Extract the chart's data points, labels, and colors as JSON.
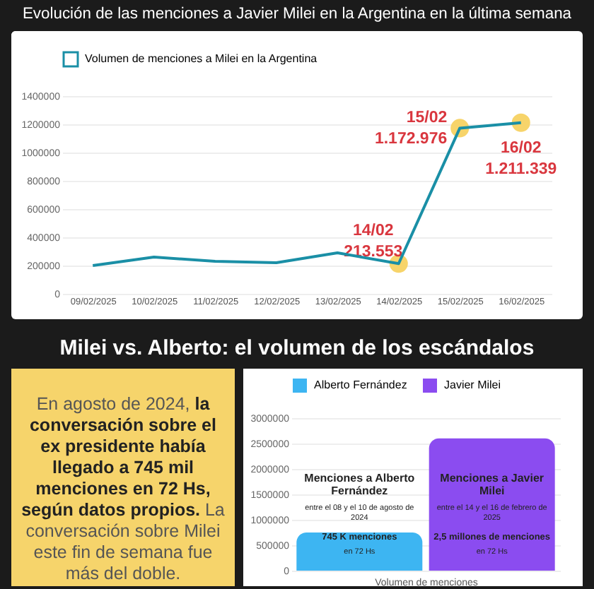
{
  "chart_data": [
    {
      "type": "line",
      "title": "Evolución de las menciones a Javier Milei en la Argentina en la última semana",
      "categories": [
        "09/02/2025",
        "10/02/2025",
        "11/02/2025",
        "12/02/2025",
        "13/02/2025",
        "14/02/2025",
        "15/02/2025",
        "16/02/2025"
      ],
      "series": [
        {
          "name": "Volumen de menciones a Milei en la Argentina",
          "color": "#1a8fa6",
          "values": [
            200000,
            260000,
            230000,
            220000,
            290000,
            213553,
            1172976,
            1211339
          ]
        },
        {
          "type": "scatter",
          "color": "#f7d46a",
          "x": [
            "14/02/2025",
            "15/02/2025",
            "16/02/2025"
          ],
          "values": [
            213553,
            1172976,
            1211339
          ],
          "value_labels": [
            "213.553",
            "1.172.976",
            "1.211.339"
          ]
        }
      ],
      "annotations": [
        "14/02",
        "15/02",
        "16/02"
      ],
      "ylim": [
        0,
        1400000
      ],
      "yticks": [
        0,
        200000,
        400000,
        600000,
        800000,
        1000000,
        1200000,
        1400000
      ],
      "grid": "y",
      "legend": "top"
    },
    {
      "type": "other",
      "title": "Milei vs. Alberto: el volumen de los escándalos",
      "annotations": [
        "En agosto de 2024,",
        "la conversación sobre el ex presidente había llegado a 745 mil menciones en 72 Hs, según datos propios.",
        "La conversación sobre Milei este fin de semana fue más del doble."
      ]
    },
    {
      "type": "bar",
      "categories": [
        null
      ],
      "xlabel": "Volumen de menciones",
      "series": [
        {
          "name": "Alberto Fernández",
          "color": "#3db5f2",
          "values": [
            750000
          ]
        },
        {
          "name": "Javier Milei",
          "color": "#8b4cf0",
          "values": [
            2600000
          ]
        }
      ],
      "annotations": [
        "Menciones a Alberto Fernández",
        "entre el 08 y el 10 de agosto de 2024",
        "745 K menciones",
        "en 72 Hs",
        "Menciones a Javier Milei",
        "entre el 14 y el 16 de febrero de 2025",
        "2,5 millones de menciones",
        "en 72 Hs"
      ],
      "ylim": [
        0,
        3000000
      ],
      "yticks": [
        0,
        500000,
        1000000,
        1500000,
        2000000,
        2500000,
        3000000
      ],
      "grid": "y",
      "legend": "top"
    }
  ]
}
